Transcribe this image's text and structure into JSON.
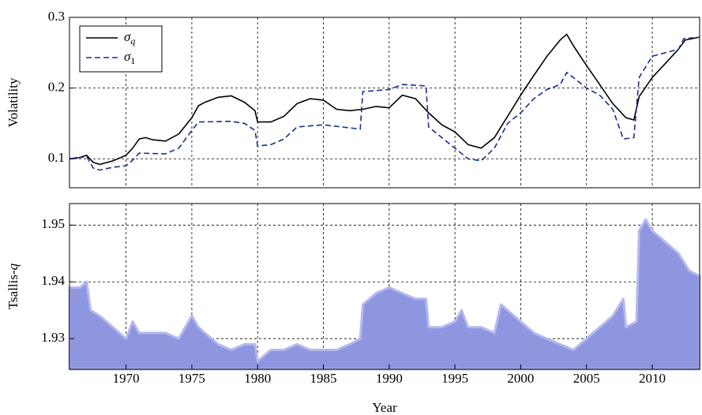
{
  "chart_data": [
    {
      "type": "line",
      "ylabel": "Volatility",
      "xlim": [
        1965.7,
        2013.6
      ],
      "ylim": [
        0.059,
        0.3
      ],
      "yticks": [
        0.1,
        0.2,
        0.3
      ],
      "grid": true,
      "legend": "upper left",
      "series": [
        {
          "name": "σq",
          "color": "#000000",
          "linestyle": "solid",
          "x": [
            1965.7,
            1966.5,
            1967,
            1967.5,
            1968,
            1969,
            1970,
            1970.5,
            1971,
            1971.5,
            1972,
            1973,
            1974,
            1975,
            1975.5,
            1976,
            1977,
            1978,
            1979,
            1979.8,
            1980,
            1981,
            1982,
            1983,
            1984,
            1985,
            1986,
            1987,
            1988,
            1989,
            1990,
            1991,
            1992,
            1993,
            1994,
            1995,
            1996,
            1997,
            1998,
            1999,
            2000,
            2001,
            2002,
            2003,
            2003.5,
            2004,
            2005,
            2006,
            2007,
            2008,
            2008.6,
            2009,
            2010,
            2011,
            2012,
            2012.5,
            2013.6
          ],
          "values": [
            0.1,
            0.102,
            0.105,
            0.095,
            0.092,
            0.097,
            0.105,
            0.115,
            0.128,
            0.13,
            0.127,
            0.125,
            0.135,
            0.158,
            0.175,
            0.18,
            0.187,
            0.189,
            0.18,
            0.168,
            0.152,
            0.152,
            0.16,
            0.178,
            0.185,
            0.183,
            0.17,
            0.168,
            0.17,
            0.174,
            0.172,
            0.19,
            0.185,
            0.165,
            0.148,
            0.138,
            0.12,
            0.115,
            0.13,
            0.16,
            0.19,
            0.218,
            0.245,
            0.268,
            0.276,
            0.26,
            0.232,
            0.205,
            0.178,
            0.158,
            0.155,
            0.188,
            0.215,
            0.235,
            0.255,
            0.268,
            0.272
          ]
        },
        {
          "name": "σ1",
          "color": "#1a2f8f",
          "linestyle": "dashed",
          "x": [
            1965.7,
            1967,
            1967.5,
            1968,
            1969,
            1970,
            1970.5,
            1971,
            1973,
            1974,
            1975,
            1975.5,
            1978,
            1979,
            1979.8,
            1980,
            1981,
            1982,
            1983,
            1985,
            1987.8,
            1988,
            1990,
            1991,
            1992.8,
            1993,
            1994,
            1995,
            1996,
            1997,
            1998,
            1999,
            2000,
            2001,
            2002,
            2003,
            2003.5,
            2004,
            2005,
            2006,
            2007,
            2007.8,
            2008.6,
            2009,
            2010,
            2011,
            2012,
            2012.4,
            2013.6
          ],
          "values": [
            0.1,
            0.103,
            0.087,
            0.084,
            0.088,
            0.09,
            0.098,
            0.108,
            0.107,
            0.115,
            0.14,
            0.152,
            0.153,
            0.15,
            0.14,
            0.118,
            0.12,
            0.128,
            0.145,
            0.148,
            0.142,
            0.195,
            0.198,
            0.205,
            0.203,
            0.145,
            0.13,
            0.115,
            0.1,
            0.097,
            0.115,
            0.15,
            0.165,
            0.185,
            0.198,
            0.205,
            0.222,
            0.215,
            0.2,
            0.19,
            0.17,
            0.128,
            0.13,
            0.215,
            0.245,
            0.25,
            0.255,
            0.27,
            0.272
          ]
        }
      ]
    },
    {
      "type": "area",
      "xlabel": "Year",
      "ylabel": "Tsallis-q",
      "xlim": [
        1965.7,
        2013.6
      ],
      "ylim": [
        1.9246,
        1.9538
      ],
      "xticks": [
        1970,
        1975,
        1980,
        1985,
        1990,
        1995,
        2000,
        2005,
        2010
      ],
      "yticks": [
        1.93,
        1.94,
        1.95
      ],
      "grid": true,
      "color": "#8f96e0",
      "x": [
        1965.7,
        1966.5,
        1967,
        1967.3,
        1968,
        1969,
        1970,
        1970.5,
        1971,
        1972,
        1973,
        1974,
        1975,
        1975.5,
        1976,
        1977,
        1978,
        1979,
        1979.8,
        1980,
        1981,
        1982,
        1983,
        1984,
        1985,
        1986,
        1987,
        1987.8,
        1988,
        1989,
        1990,
        1991,
        1992,
        1992.8,
        1993,
        1994,
        1995,
        1995.5,
        1996,
        1997,
        1998,
        1998.5,
        1999,
        2000,
        2001,
        2002,
        2003,
        2004,
        2005,
        2006,
        2007,
        2007.8,
        2008,
        2008.8,
        2009,
        2009.5,
        2010,
        2011,
        2012,
        2012.8,
        2013.6
      ],
      "values": [
        1.939,
        1.939,
        1.94,
        1.935,
        1.934,
        1.932,
        1.93,
        1.933,
        1.931,
        1.931,
        1.931,
        1.93,
        1.934,
        1.932,
        1.931,
        1.929,
        1.928,
        1.929,
        1.929,
        1.926,
        1.928,
        1.928,
        1.929,
        1.928,
        1.928,
        1.928,
        1.929,
        1.93,
        1.936,
        1.938,
        1.939,
        1.938,
        1.937,
        1.937,
        1.932,
        1.932,
        1.933,
        1.935,
        1.932,
        1.932,
        1.931,
        1.936,
        1.935,
        1.933,
        1.931,
        1.93,
        1.929,
        1.928,
        1.93,
        1.932,
        1.934,
        1.937,
        1.932,
        1.933,
        1.949,
        1.951,
        1.949,
        1.947,
        1.945,
        1.942,
        1.941
      ]
    }
  ]
}
